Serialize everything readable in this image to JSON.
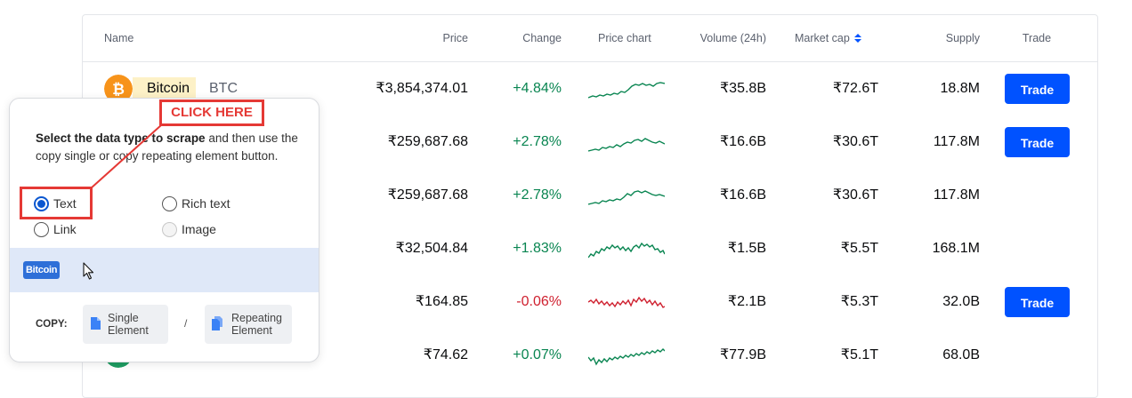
{
  "table": {
    "headers": {
      "name": "Name",
      "price": "Price",
      "change": "Change",
      "price_chart": "Price chart",
      "volume": "Volume (24h)",
      "market_cap": "Market cap",
      "supply": "Supply",
      "trade": "Trade"
    },
    "rows": [
      {
        "name": "Bitcoin",
        "symbol": "BTC",
        "price": "₹3,854,374.01",
        "change": "+4.84%",
        "volume": "₹35.8B",
        "market_cap": "₹72.6T",
        "supply": "18.8M",
        "trade": "Trade"
      },
      {
        "price": "₹259,687.68",
        "change": "+2.78%",
        "volume": "₹16.6B",
        "market_cap": "₹30.6T",
        "supply": "117.8M",
        "trade": "Trade"
      },
      {
        "price": "₹259,687.68",
        "change": "+2.78%",
        "volume": "₹16.6B",
        "market_cap": "₹30.6T",
        "supply": "117.8M"
      },
      {
        "price": "₹32,504.84",
        "change": "+1.83%",
        "volume": "₹1.5B",
        "market_cap": "₹5.5T",
        "supply": "168.1M"
      },
      {
        "price": "₹164.85",
        "change": "-0.06%",
        "volume": "₹2.1B",
        "market_cap": "₹5.3T",
        "supply": "32.0B",
        "trade": "Trade"
      },
      {
        "price": "₹74.62",
        "change": "+0.07%",
        "volume": "₹77.9B",
        "market_cap": "₹5.1T",
        "supply": "68.0B"
      }
    ]
  },
  "panel": {
    "instruction_bold": "Select the data type to scrape",
    "instruction_rest": " and then use the copy single or copy repeating element button.",
    "options": {
      "text": "Text",
      "rich_text": "Rich text",
      "link": "Link",
      "image": "Image"
    },
    "preview_chip": "Bitcoin",
    "copy_label": "COPY:",
    "single_line1": "Single",
    "single_line2": "Element",
    "separator": "/",
    "repeating_line1": "Repeating",
    "repeating_line2": "Element"
  },
  "annotation": {
    "callout": "CLICK HERE"
  },
  "colors": {
    "positive": "#098551",
    "negative": "#cf202f",
    "trade_button": "#0052ff",
    "annotation": "#e53935",
    "bitcoin_orange": "#f7931a"
  }
}
